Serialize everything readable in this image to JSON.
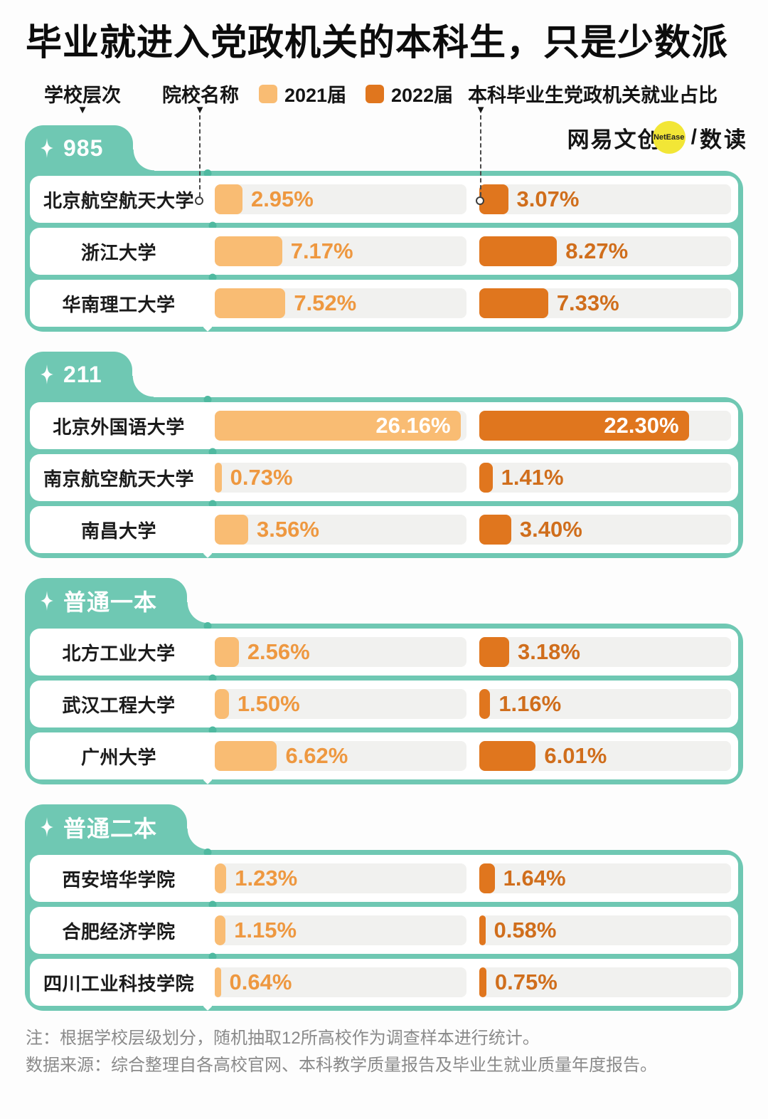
{
  "title": "毕业就进入党政机关的本科生，只是少数派",
  "legend": {
    "school_tier_label": "学校层次",
    "school_name_label": "院校名称",
    "series_2021_label": "2021届",
    "series_2022_label": "2022届",
    "metric_label": "本科毕业生党政机关就业占比"
  },
  "logo": {
    "brand": "网易文创",
    "badge": "NetEase",
    "slash": "/",
    "sub_brand": "数读"
  },
  "notes": {
    "line1": "注：根据学校层级划分，随机抽取12所高校作为调查样本进行统计。",
    "line2": "数据来源：综合整理自各高校官网、本科教学质量报告及毕业生就业质量年度报告。"
  },
  "colors": {
    "teal": "#6FC8B3",
    "teal_node": "#4FB9A0",
    "bar_2021": "#F9BC73",
    "bar_2022": "#E0761E",
    "value_text_2021": "#EE9840",
    "value_text_2022": "#D06E1C",
    "track_gray": "#F1F1EF",
    "badge_yellow": "#F2E636"
  },
  "chart_data": {
    "type": "bar",
    "orientation": "horizontal",
    "unit": "%",
    "series_names": [
      "2021届",
      "2022届"
    ],
    "xlim": [
      0,
      26.8
    ],
    "inside_label_threshold": 15,
    "grid": false,
    "legend_position": "top",
    "sections": [
      {
        "tier": "985",
        "rows": [
          {
            "school": "北京航空航天大学",
            "y2021": 2.95,
            "y2022": 3.07,
            "y2021_label": "2.95%",
            "y2022_label": "3.07%"
          },
          {
            "school": "浙江大学",
            "y2021": 7.17,
            "y2022": 8.27,
            "y2021_label": "7.17%",
            "y2022_label": "8.27%"
          },
          {
            "school": "华南理工大学",
            "y2021": 7.52,
            "y2022": 7.33,
            "y2021_label": "7.52%",
            "y2022_label": "7.33%"
          }
        ]
      },
      {
        "tier": "211",
        "rows": [
          {
            "school": "北京外国语大学",
            "y2021": 26.16,
            "y2022": 22.3,
            "y2021_label": "26.16%",
            "y2022_label": "22.30%"
          },
          {
            "school": "南京航空航天大学",
            "y2021": 0.73,
            "y2022": 1.41,
            "y2021_label": "0.73%",
            "y2022_label": "1.41%"
          },
          {
            "school": "南昌大学",
            "y2021": 3.56,
            "y2022": 3.4,
            "y2021_label": "3.56%",
            "y2022_label": "3.40%"
          }
        ]
      },
      {
        "tier": "普通一本",
        "rows": [
          {
            "school": "北方工业大学",
            "y2021": 2.56,
            "y2022": 3.18,
            "y2021_label": "2.56%",
            "y2022_label": "3.18%"
          },
          {
            "school": "武汉工程大学",
            "y2021": 1.5,
            "y2022": 1.16,
            "y2021_label": "1.50%",
            "y2022_label": "1.16%"
          },
          {
            "school": "广州大学",
            "y2021": 6.62,
            "y2022": 6.01,
            "y2021_label": "6.62%",
            "y2022_label": "6.01%"
          }
        ]
      },
      {
        "tier": "普通二本",
        "rows": [
          {
            "school": "西安培华学院",
            "y2021": 1.23,
            "y2022": 1.64,
            "y2021_label": "1.23%",
            "y2022_label": "1.64%"
          },
          {
            "school": "合肥经济学院",
            "y2021": 1.15,
            "y2022": 0.58,
            "y2021_label": "1.15%",
            "y2022_label": "0.58%"
          },
          {
            "school": "四川工业科技学院",
            "y2021": 0.64,
            "y2022": 0.75,
            "y2021_label": "0.64%",
            "y2022_label": "0.75%"
          }
        ]
      }
    ]
  }
}
